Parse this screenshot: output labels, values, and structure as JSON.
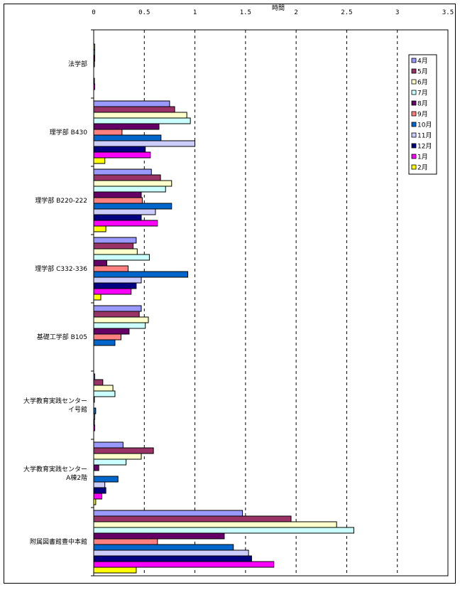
{
  "chart_data": {
    "type": "bar",
    "orientation": "horizontal",
    "title": "",
    "xlabel": "時間",
    "ylabel": "",
    "xlim": [
      0,
      3.5
    ],
    "xticks": [
      "0",
      "0.5",
      "1",
      "1.5",
      "2",
      "2.5",
      "3",
      "3.5"
    ],
    "grid": "vertical dashed",
    "legend_position": "right",
    "categories": [
      [
        "法学部"
      ],
      [
        "理学部 B430"
      ],
      [
        "理学部 B220-222"
      ],
      [
        "理学部 C332-336"
      ],
      [
        "基礎工学部 B105"
      ],
      [
        "大学教育実践センター",
        "イ号館"
      ],
      [
        "大学教育実践センター",
        "A棟2階"
      ],
      [
        "附属図書館豊中本館"
      ]
    ],
    "series": [
      {
        "name": "4月",
        "color": "#9999FF",
        "values": [
          0,
          0.75,
          0.57,
          0.42,
          0.47,
          0.01,
          0.29,
          1.47
        ]
      },
      {
        "name": "5月",
        "color": "#993366",
        "values": [
          0,
          0.8,
          0.66,
          0.39,
          0.45,
          0.09,
          0.59,
          1.95
        ]
      },
      {
        "name": "6月",
        "color": "#FFFFCC",
        "values": [
          0.01,
          0.92,
          0.77,
          0.43,
          0.54,
          0.19,
          0.47,
          2.4
        ]
      },
      {
        "name": "7月",
        "color": "#CCFFFF",
        "values": [
          0.01,
          0.955,
          0.71,
          0.55,
          0.51,
          0.21,
          0.32,
          2.57
        ]
      },
      {
        "name": "8月",
        "color": "#660066",
        "values": [
          0.01,
          0.645,
          0.47,
          0.13,
          0.35,
          0.005,
          0.05,
          1.29
        ]
      },
      {
        "name": "9月",
        "color": "#FF8080",
        "values": [
          0.005,
          0.28,
          0.48,
          0.34,
          0.27,
          0,
          0,
          0.63
        ]
      },
      {
        "name": "10月",
        "color": "#0066CC",
        "values": [
          0,
          0.665,
          0.77,
          0.93,
          0.21,
          0.02,
          0.24,
          1.38
        ]
      },
      {
        "name": "11月",
        "color": "#CCCCFF",
        "values": [
          0,
          1.0,
          0.61,
          0.47,
          0,
          0.01,
          0.11,
          1.53
        ]
      },
      {
        "name": "12月",
        "color": "#000080",
        "values": [
          0.005,
          0.51,
          0.47,
          0.42,
          0,
          0.007,
          0.12,
          1.56
        ]
      },
      {
        "name": "1月",
        "color": "#FF00FF",
        "values": [
          0.01,
          0.56,
          0.63,
          0.37,
          0,
          0.01,
          0.08,
          1.78
        ]
      },
      {
        "name": "2月",
        "color": "#FFFF00",
        "values": [
          0,
          0.11,
          0.12,
          0.07,
          0,
          0,
          0.02,
          0.42
        ]
      }
    ]
  }
}
